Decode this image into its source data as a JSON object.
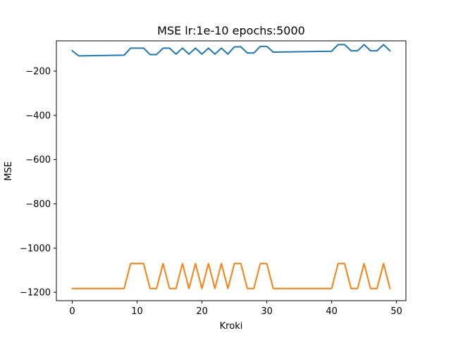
{
  "chart_data": {
    "type": "line",
    "title": "MSE lr:1e-10 epochs:5000",
    "xlabel": "Kroki",
    "ylabel": "MSE",
    "xlim": [
      -2.45,
      51.45
    ],
    "ylim": [
      -1238,
      -63
    ],
    "xticks": [
      0,
      10,
      20,
      30,
      40,
      50
    ],
    "yticks": [
      -1200,
      -1000,
      -800,
      -600,
      -400,
      -200
    ],
    "ytick_labels": [
      "−1200",
      "−1000",
      "−800",
      "−600",
      "−400",
      "−200"
    ],
    "xtick_labels": [
      "0",
      "10",
      "20",
      "30",
      "40",
      "50"
    ],
    "grid": false,
    "legend": "none",
    "series": [
      {
        "color": "#1f77b4",
        "x": [
          0,
          1,
          8,
          9,
          10,
          11,
          12,
          13,
          14,
          15,
          16,
          17,
          18,
          19,
          20,
          21,
          22,
          23,
          24,
          25,
          26,
          27,
          28,
          29,
          30,
          31,
          40,
          41,
          42,
          43,
          44,
          45,
          46,
          47,
          48,
          49
        ],
        "y": [
          -108,
          -131,
          -128,
          -96,
          -96,
          -96,
          -125,
          -125,
          -96,
          -96,
          -123,
          -96,
          -123,
          -96,
          -123,
          -96,
          -123,
          -96,
          -123,
          -90,
          -90,
          -118,
          -118,
          -88,
          -88,
          -114,
          -110,
          -80,
          -80,
          -108,
          -108,
          -80,
          -108,
          -108,
          -80,
          -108
        ]
      },
      {
        "color": "#ff7f0e",
        "x": [
          0,
          8,
          9,
          10,
          11,
          12,
          13,
          14,
          15,
          16,
          17,
          18,
          19,
          20,
          21,
          22,
          23,
          24,
          25,
          26,
          27,
          28,
          29,
          30,
          31,
          40,
          41,
          42,
          43,
          44,
          45,
          46,
          47,
          48,
          49
        ],
        "y": [
          -1183,
          -1183,
          -1070,
          -1070,
          -1070,
          -1183,
          -1183,
          -1070,
          -1183,
          -1183,
          -1070,
          -1183,
          -1070,
          -1183,
          -1070,
          -1183,
          -1070,
          -1183,
          -1070,
          -1070,
          -1183,
          -1183,
          -1070,
          -1070,
          -1183,
          -1183,
          -1070,
          -1070,
          -1183,
          -1183,
          -1070,
          -1183,
          -1183,
          -1070,
          -1183
        ]
      }
    ]
  }
}
